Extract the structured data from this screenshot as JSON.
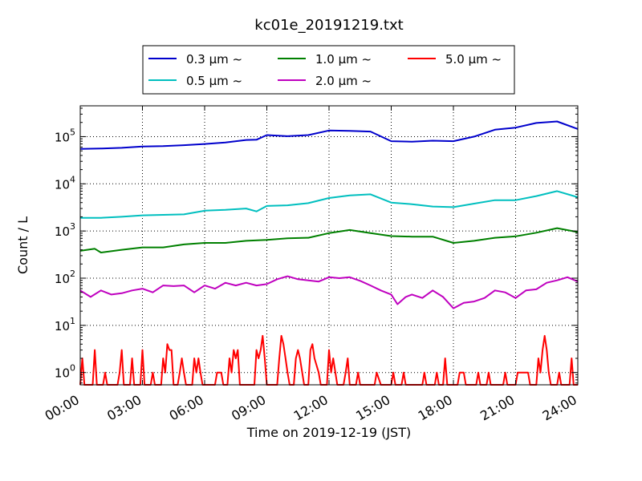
{
  "chart_data": {
    "type": "line",
    "title": "kc01e_20191219.txt",
    "xlabel": "Time on 2019-12-19 (JST)",
    "ylabel": "Count / L",
    "x_start": "00:00",
    "x_end": "24:00",
    "x_ticks": [
      "00:00",
      "03:00",
      "06:00",
      "09:00",
      "12:00",
      "15:00",
      "18:00",
      "21:00",
      "24:00"
    ],
    "y_scale": "log",
    "ylim": [
      0.55,
      450000
    ],
    "y_ticks": [
      {
        "base": "10",
        "exp": "0",
        "value": 1
      },
      {
        "base": "10",
        "exp": "1",
        "value": 10
      },
      {
        "base": "10",
        "exp": "2",
        "value": 100
      },
      {
        "base": "10",
        "exp": "3",
        "value": 1000
      },
      {
        "base": "10",
        "exp": "4",
        "value": 10000
      },
      {
        "base": "10",
        "exp": "5",
        "value": 100000
      }
    ],
    "grid": true,
    "legend_placement": "top-center",
    "series": [
      {
        "name": "0.3 μm ~",
        "color": "#0000cc",
        "points": [
          [
            0,
            55000
          ],
          [
            1,
            56000
          ],
          [
            2,
            58000
          ],
          [
            3,
            62000
          ],
          [
            4,
            63000
          ],
          [
            5,
            66000
          ],
          [
            6,
            70000
          ],
          [
            7,
            75000
          ],
          [
            8,
            85000
          ],
          [
            8.5,
            86000
          ],
          [
            9,
            108000
          ],
          [
            10,
            102000
          ],
          [
            11,
            108000
          ],
          [
            12,
            135000
          ],
          [
            13,
            132000
          ],
          [
            14,
            128000
          ],
          [
            15,
            80000
          ],
          [
            16,
            78000
          ],
          [
            17,
            82000
          ],
          [
            18,
            80000
          ],
          [
            19,
            100000
          ],
          [
            20,
            140000
          ],
          [
            21,
            155000
          ],
          [
            22,
            195000
          ],
          [
            23,
            210000
          ],
          [
            24,
            145000
          ]
        ]
      },
      {
        "name": "0.5 μm ~",
        "color": "#00bfbf",
        "points": [
          [
            0,
            1900
          ],
          [
            1,
            1900
          ],
          [
            2,
            2000
          ],
          [
            3,
            2150
          ],
          [
            4,
            2200
          ],
          [
            5,
            2250
          ],
          [
            6,
            2700
          ],
          [
            7,
            2800
          ],
          [
            8,
            3000
          ],
          [
            8.5,
            2600
          ],
          [
            9,
            3400
          ],
          [
            10,
            3500
          ],
          [
            11,
            3900
          ],
          [
            12,
            5000
          ],
          [
            13,
            5700
          ],
          [
            14,
            6000
          ],
          [
            15,
            4000
          ],
          [
            16,
            3700
          ],
          [
            17,
            3300
          ],
          [
            18,
            3200
          ],
          [
            19,
            3800
          ],
          [
            20,
            4500
          ],
          [
            21,
            4500
          ],
          [
            22,
            5500
          ],
          [
            23,
            7000
          ],
          [
            24,
            5200
          ]
        ]
      },
      {
        "name": "1.0 μm ~",
        "color": "#008000",
        "points": [
          [
            0,
            380
          ],
          [
            0.7,
            420
          ],
          [
            1,
            350
          ],
          [
            2,
            400
          ],
          [
            3,
            450
          ],
          [
            4,
            450
          ],
          [
            5,
            520
          ],
          [
            6,
            560
          ],
          [
            7,
            560
          ],
          [
            8,
            620
          ],
          [
            9,
            650
          ],
          [
            10,
            700
          ],
          [
            11,
            720
          ],
          [
            12,
            900
          ],
          [
            13,
            1050
          ],
          [
            14,
            900
          ],
          [
            15,
            780
          ],
          [
            16,
            760
          ],
          [
            17,
            760
          ],
          [
            18,
            560
          ],
          [
            19,
            620
          ],
          [
            20,
            720
          ],
          [
            21,
            770
          ],
          [
            22,
            920
          ],
          [
            23,
            1150
          ],
          [
            24,
            950
          ]
        ]
      },
      {
        "name": "2.0 μm ~",
        "color": "#bf00bf",
        "points": [
          [
            0,
            55
          ],
          [
            0.5,
            40
          ],
          [
            1,
            55
          ],
          [
            1.5,
            45
          ],
          [
            2,
            48
          ],
          [
            2.5,
            55
          ],
          [
            3,
            60
          ],
          [
            3.5,
            50
          ],
          [
            4,
            70
          ],
          [
            4.5,
            68
          ],
          [
            5,
            70
          ],
          [
            5.5,
            50
          ],
          [
            6,
            70
          ],
          [
            6.5,
            60
          ],
          [
            7,
            80
          ],
          [
            7.5,
            70
          ],
          [
            8,
            80
          ],
          [
            8.5,
            70
          ],
          [
            9,
            75
          ],
          [
            9.5,
            95
          ],
          [
            10,
            110
          ],
          [
            10.5,
            95
          ],
          [
            11,
            90
          ],
          [
            11.5,
            85
          ],
          [
            12,
            105
          ],
          [
            12.5,
            100
          ],
          [
            13,
            105
          ],
          [
            13.5,
            88
          ],
          [
            14,
            70
          ],
          [
            14.5,
            55
          ],
          [
            15,
            45
          ],
          [
            15.3,
            28
          ],
          [
            15.7,
            40
          ],
          [
            16,
            45
          ],
          [
            16.5,
            38
          ],
          [
            17,
            55
          ],
          [
            17.5,
            40
          ],
          [
            18,
            23
          ],
          [
            18.5,
            30
          ],
          [
            19,
            32
          ],
          [
            19.5,
            38
          ],
          [
            20,
            55
          ],
          [
            20.5,
            50
          ],
          [
            21,
            38
          ],
          [
            21.5,
            55
          ],
          [
            22,
            58
          ],
          [
            22.5,
            80
          ],
          [
            23,
            90
          ],
          [
            23.5,
            105
          ],
          [
            24,
            85
          ]
        ]
      },
      {
        "name": "5.0 μm ~",
        "color": "#ff0000",
        "points": [
          [
            0,
            0
          ],
          [
            0.1,
            2
          ],
          [
            0.2,
            0
          ],
          [
            0.6,
            0
          ],
          [
            0.7,
            3
          ],
          [
            0.8,
            0
          ],
          [
            1.1,
            0
          ],
          [
            1.2,
            1
          ],
          [
            1.3,
            0
          ],
          [
            1.8,
            0
          ],
          [
            1.9,
            1
          ],
          [
            2,
            3
          ],
          [
            2.1,
            0
          ],
          [
            2.4,
            0
          ],
          [
            2.5,
            2
          ],
          [
            2.6,
            0
          ],
          [
            2.9,
            0
          ],
          [
            3,
            3
          ],
          [
            3.1,
            0
          ],
          [
            3.4,
            0
          ],
          [
            3.5,
            1
          ],
          [
            3.6,
            0
          ],
          [
            3.9,
            0
          ],
          [
            4,
            2
          ],
          [
            4.1,
            1
          ],
          [
            4.2,
            4
          ],
          [
            4.3,
            3
          ],
          [
            4.4,
            3
          ],
          [
            4.5,
            0
          ],
          [
            4.7,
            0
          ],
          [
            4.8,
            1
          ],
          [
            4.9,
            2
          ],
          [
            5,
            1
          ],
          [
            5.1,
            0
          ],
          [
            5.4,
            0
          ],
          [
            5.5,
            2
          ],
          [
            5.6,
            1
          ],
          [
            5.7,
            2
          ],
          [
            5.8,
            1
          ],
          [
            5.9,
            0
          ],
          [
            6.5,
            0
          ],
          [
            6.6,
            1
          ],
          [
            6.8,
            1
          ],
          [
            6.9,
            0
          ],
          [
            7.1,
            0
          ],
          [
            7.2,
            2
          ],
          [
            7.3,
            1
          ],
          [
            7.4,
            3
          ],
          [
            7.5,
            2
          ],
          [
            7.6,
            3
          ],
          [
            7.7,
            0
          ],
          [
            8.4,
            0
          ],
          [
            8.5,
            3
          ],
          [
            8.6,
            2
          ],
          [
            8.7,
            3
          ],
          [
            8.8,
            6
          ],
          [
            8.9,
            2
          ],
          [
            9,
            0
          ],
          [
            9.5,
            0
          ],
          [
            9.6,
            2
          ],
          [
            9.7,
            6
          ],
          [
            9.8,
            4
          ],
          [
            9.9,
            2
          ],
          [
            10,
            1
          ],
          [
            10.1,
            0
          ],
          [
            10.3,
            0
          ],
          [
            10.4,
            2
          ],
          [
            10.5,
            3
          ],
          [
            10.6,
            2
          ],
          [
            10.8,
            0
          ],
          [
            11,
            0
          ],
          [
            11.1,
            3
          ],
          [
            11.2,
            4
          ],
          [
            11.3,
            2
          ],
          [
            11.5,
            1
          ],
          [
            11.6,
            0
          ],
          [
            11.9,
            0
          ],
          [
            12,
            3
          ],
          [
            12.1,
            1
          ],
          [
            12.2,
            2
          ],
          [
            12.4,
            0
          ],
          [
            12.7,
            0
          ],
          [
            12.8,
            1
          ],
          [
            12.9,
            2
          ],
          [
            13,
            0
          ],
          [
            13.3,
            0
          ],
          [
            13.4,
            1
          ],
          [
            13.5,
            0
          ],
          [
            14.2,
            0
          ],
          [
            14.3,
            1
          ],
          [
            14.5,
            0
          ],
          [
            15,
            0
          ],
          [
            15.1,
            1
          ],
          [
            15.2,
            0
          ],
          [
            15.5,
            0
          ],
          [
            15.6,
            1
          ],
          [
            15.7,
            0
          ],
          [
            16.5,
            0
          ],
          [
            16.6,
            1
          ],
          [
            16.7,
            0
          ],
          [
            17.1,
            0
          ],
          [
            17.2,
            1
          ],
          [
            17.3,
            0
          ],
          [
            17.5,
            0
          ],
          [
            17.6,
            2
          ],
          [
            17.7,
            0
          ],
          [
            18.2,
            0
          ],
          [
            18.3,
            1
          ],
          [
            18.5,
            1
          ],
          [
            18.6,
            0
          ],
          [
            19.1,
            0
          ],
          [
            19.2,
            1
          ],
          [
            19.3,
            0
          ],
          [
            19.6,
            0
          ],
          [
            19.7,
            1
          ],
          [
            19.8,
            0
          ],
          [
            20.4,
            0
          ],
          [
            20.5,
            1
          ],
          [
            20.6,
            0
          ],
          [
            21,
            0
          ],
          [
            21.1,
            1
          ],
          [
            21.6,
            1
          ],
          [
            21.7,
            0
          ],
          [
            22,
            0
          ],
          [
            22.1,
            2
          ],
          [
            22.2,
            1
          ],
          [
            22.3,
            3
          ],
          [
            22.4,
            6
          ],
          [
            22.5,
            3
          ],
          [
            22.6,
            1
          ],
          [
            22.7,
            0
          ],
          [
            23,
            0
          ],
          [
            23.1,
            1
          ],
          [
            23.2,
            0
          ],
          [
            23.6,
            0
          ],
          [
            23.7,
            2
          ],
          [
            23.8,
            0
          ],
          [
            24,
            0
          ]
        ]
      }
    ]
  }
}
